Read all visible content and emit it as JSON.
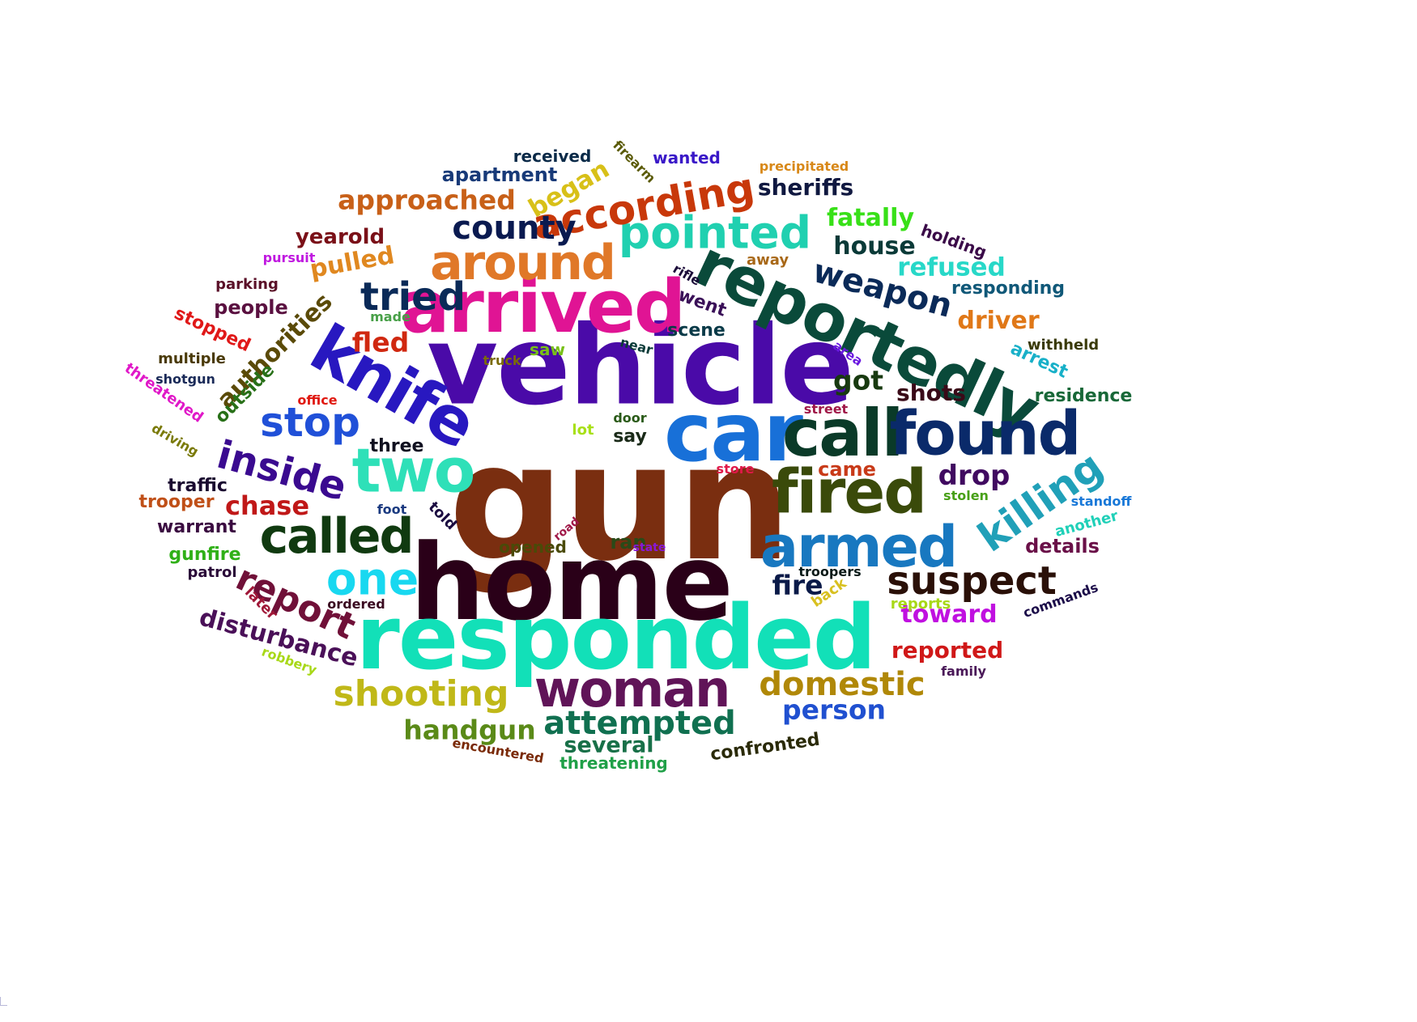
{
  "words": [
    {
      "text": "gun",
      "color": "#7a2e10"
    },
    {
      "text": "vehicle",
      "color": "#4a0aa8"
    },
    {
      "text": "home",
      "color": "#2a0018"
    },
    {
      "text": "responded",
      "color": "#12e0b8"
    },
    {
      "text": "car",
      "color": "#1870d8"
    },
    {
      "text": "arrived",
      "color": "#e01494"
    },
    {
      "text": "reportedly",
      "color": "#0a4a3a"
    },
    {
      "text": "knife",
      "color": "#2818c0"
    },
    {
      "text": "call",
      "color": "#0a3a28"
    },
    {
      "text": "found",
      "color": "#0a2a6a"
    },
    {
      "text": "fired",
      "color": "#3a4a0a"
    },
    {
      "text": "two",
      "color": "#2ee0b8"
    },
    {
      "text": "armed",
      "color": "#1878c0"
    },
    {
      "text": "called",
      "color": "#103a10"
    },
    {
      "text": "woman",
      "color": "#601458"
    },
    {
      "text": "around",
      "color": "#e07828"
    },
    {
      "text": "pointed",
      "color": "#20d0b0"
    },
    {
      "text": "according",
      "color": "#c8380a"
    },
    {
      "text": "killing",
      "color": "#20a0b8"
    },
    {
      "text": "suspect",
      "color": "#2a1008"
    },
    {
      "text": "inside",
      "color": "#3a0a90"
    },
    {
      "text": "stop",
      "color": "#2050d8"
    },
    {
      "text": "one",
      "color": "#18d8f0"
    },
    {
      "text": "report",
      "color": "#701038"
    },
    {
      "text": "tried",
      "color": "#0a2a58"
    },
    {
      "text": "weapon",
      "color": "#0a2a58"
    },
    {
      "text": "shooting",
      "color": "#c0b818"
    },
    {
      "text": "attempted",
      "color": "#107050"
    },
    {
      "text": "domestic",
      "color": "#b08808"
    },
    {
      "text": "county",
      "color": "#0a1a50"
    },
    {
      "text": "handgun",
      "color": "#5a8a18"
    },
    {
      "text": "authorities",
      "color": "#5a4a08"
    },
    {
      "text": "approached",
      "color": "#c86018"
    },
    {
      "text": "disturbance",
      "color": "#4a1058"
    },
    {
      "text": "toward",
      "color": "#c010e0"
    },
    {
      "text": "person",
      "color": "#2050d0"
    },
    {
      "text": "house",
      "color": "#0a3a38"
    },
    {
      "text": "pulled",
      "color": "#e08820"
    },
    {
      "text": "fled",
      "color": "#d02810"
    },
    {
      "text": "got",
      "color": "#183a10"
    },
    {
      "text": "drop",
      "color": "#400a60"
    },
    {
      "text": "fire",
      "color": "#0a1a48"
    },
    {
      "text": "chase",
      "color": "#c01818"
    },
    {
      "text": "driver",
      "color": "#e07818"
    },
    {
      "text": "refused",
      "color": "#28d8c8"
    },
    {
      "text": "began",
      "color": "#d8c018"
    },
    {
      "text": "fatally",
      "color": "#38e018"
    },
    {
      "text": "shots",
      "color": "#3a0a18"
    },
    {
      "text": "reported",
      "color": "#d01818"
    },
    {
      "text": "sheriffs",
      "color": "#101840"
    },
    {
      "text": "yearold",
      "color": "#7a1018"
    },
    {
      "text": "apartment",
      "color": "#183a78"
    },
    {
      "text": "traffic",
      "color": "#1a0a30"
    },
    {
      "text": "several",
      "color": "#187048"
    },
    {
      "text": "responding",
      "color": "#105878"
    },
    {
      "text": "came",
      "color": "#c83a18"
    },
    {
      "text": "ran",
      "color": "#2a4a18"
    },
    {
      "text": "people",
      "color": "#5a1040"
    },
    {
      "text": "confronted",
      "color": "#2a2a08"
    },
    {
      "text": "details",
      "color": "#6a1048"
    },
    {
      "text": "outside",
      "color": "#287018"
    },
    {
      "text": "arrest",
      "color": "#18b0c8"
    },
    {
      "text": "warrant",
      "color": "#3a0a40"
    },
    {
      "text": "say",
      "color": "#1a2a18"
    },
    {
      "text": "scene",
      "color": "#0a3a48"
    },
    {
      "text": "three",
      "color": "#101020"
    },
    {
      "text": "residence",
      "color": "#186838"
    },
    {
      "text": "gunfire",
      "color": "#30b018"
    },
    {
      "text": "opened",
      "color": "#4a4a08"
    },
    {
      "text": "threatening",
      "color": "#20a048"
    },
    {
      "text": "received",
      "color": "#0a2a48"
    },
    {
      "text": "parking",
      "color": "#5a1028"
    },
    {
      "text": "trooper",
      "color": "#c05018"
    },
    {
      "text": "stopped",
      "color": "#e01818"
    },
    {
      "text": "went",
      "color": "#3a1058"
    },
    {
      "text": "holding",
      "color": "#3a0a48"
    },
    {
      "text": "told",
      "color": "#1a0a40"
    },
    {
      "text": "multiple",
      "color": "#4a3a08"
    },
    {
      "text": "wanted",
      "color": "#3a18c8"
    },
    {
      "text": "saw",
      "color": "#78c018"
    },
    {
      "text": "threatened",
      "color": "#e018c8"
    },
    {
      "text": "later",
      "color": "#a01838"
    },
    {
      "text": "back",
      "color": "#d8c020"
    },
    {
      "text": "patrol",
      "color": "#2a0a38"
    },
    {
      "text": "reports",
      "color": "#a8d818"
    },
    {
      "text": "another",
      "color": "#20d0b8"
    },
    {
      "text": "withheld",
      "color": "#3a3a08"
    },
    {
      "text": "away",
      "color": "#a86818"
    },
    {
      "text": "encountered",
      "color": "#7a2a08"
    },
    {
      "text": "foot",
      "color": "#1a3a80"
    },
    {
      "text": "troopers",
      "color": "#0a1a18"
    },
    {
      "text": "stolen",
      "color": "#48a018"
    },
    {
      "text": "precipitated",
      "color": "#d88818"
    },
    {
      "text": "door",
      "color": "#2a5a18"
    },
    {
      "text": "commands",
      "color": "#1a0a48"
    },
    {
      "text": "driving",
      "color": "#7a7a08"
    },
    {
      "text": "family",
      "color": "#4a1858"
    },
    {
      "text": "pursuit",
      "color": "#c018e0"
    },
    {
      "text": "firearm",
      "color": "#5a5a08"
    },
    {
      "text": "ordered",
      "color": "#3a0a20"
    },
    {
      "text": "robbery",
      "color": "#a8d818"
    },
    {
      "text": "office",
      "color": "#e01810"
    },
    {
      "text": "near",
      "color": "#0a3a38"
    },
    {
      "text": "street",
      "color": "#a01848"
    },
    {
      "text": "lot",
      "color": "#a8e018"
    },
    {
      "text": "shotgun",
      "color": "#1a2a58"
    },
    {
      "text": "made",
      "color": "#48a048"
    },
    {
      "text": "truck",
      "color": "#7a6a08"
    },
    {
      "text": "area",
      "color": "#6a18e0"
    },
    {
      "text": "standoff",
      "color": "#1878d8"
    },
    {
      "text": "rifle",
      "color": "#1a0a38"
    },
    {
      "text": "store",
      "color": "#e01848"
    },
    {
      "text": "state",
      "color": "#8818d8"
    },
    {
      "text": "road",
      "color": "#a01848"
    }
  ]
}
